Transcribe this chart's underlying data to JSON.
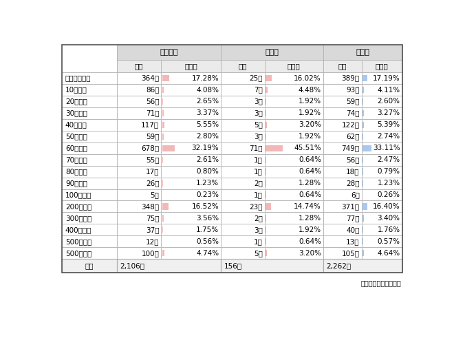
{
  "rows": [
    {
      "label": "許容できない",
      "sme_count": "364社",
      "sme_pct": "17.28%",
      "large_count": "25社",
      "large_pct": "16.02%",
      "all_count": "389社",
      "all_pct": "17.19%",
      "sme_bar": 17.28,
      "large_bar": 16.02,
      "all_bar": 17.19
    },
    {
      "label": "10円未満",
      "sme_count": "86社",
      "sme_pct": "4.08%",
      "large_count": "7社",
      "large_pct": "4.48%",
      "all_count": "93社",
      "all_pct": "4.11%",
      "sme_bar": 4.08,
      "large_bar": 4.48,
      "all_bar": 4.11
    },
    {
      "label": "20円未満",
      "sme_count": "56社",
      "sme_pct": "2.65%",
      "large_count": "3社",
      "large_pct": "1.92%",
      "all_count": "59社",
      "all_pct": "2.60%",
      "sme_bar": 2.65,
      "large_bar": 1.92,
      "all_bar": 2.6
    },
    {
      "label": "30円未満",
      "sme_count": "71社",
      "sme_pct": "3.37%",
      "large_count": "3社",
      "large_pct": "1.92%",
      "all_count": "74社",
      "all_pct": "3.27%",
      "sme_bar": 3.37,
      "large_bar": 1.92,
      "all_bar": 3.27
    },
    {
      "label": "40円未満",
      "sme_count": "117社",
      "sme_pct": "5.55%",
      "large_count": "5社",
      "large_pct": "3.20%",
      "all_count": "122社",
      "all_pct": "5.39%",
      "sme_bar": 5.55,
      "large_bar": 3.2,
      "all_bar": 5.39
    },
    {
      "label": "50円未満",
      "sme_count": "59社",
      "sme_pct": "2.80%",
      "large_count": "3社",
      "large_pct": "1.92%",
      "all_count": "62社",
      "all_pct": "2.74%",
      "sme_bar": 2.8,
      "large_bar": 1.92,
      "all_bar": 2.74
    },
    {
      "label": "60円未満",
      "sme_count": "678社",
      "sme_pct": "32.19%",
      "large_count": "71社",
      "large_pct": "45.51%",
      "all_count": "749社",
      "all_pct": "33.11%",
      "sme_bar": 32.19,
      "large_bar": 45.51,
      "all_bar": 33.11
    },
    {
      "label": "70円未満",
      "sme_count": "55社",
      "sme_pct": "2.61%",
      "large_count": "1社",
      "large_pct": "0.64%",
      "all_count": "56社",
      "all_pct": "2.47%",
      "sme_bar": 2.61,
      "large_bar": 0.64,
      "all_bar": 2.47
    },
    {
      "label": "80円未満",
      "sme_count": "17社",
      "sme_pct": "0.80%",
      "large_count": "1社",
      "large_pct": "0.64%",
      "all_count": "18社",
      "all_pct": "0.79%",
      "sme_bar": 0.8,
      "large_bar": 0.64,
      "all_bar": 0.79
    },
    {
      "label": "90円未満",
      "sme_count": "26社",
      "sme_pct": "1.23%",
      "large_count": "2社",
      "large_pct": "1.28%",
      "all_count": "28社",
      "all_pct": "1.23%",
      "sme_bar": 1.23,
      "large_bar": 1.28,
      "all_bar": 1.23
    },
    {
      "label": "100円未満",
      "sme_count": "5社",
      "sme_pct": "0.23%",
      "large_count": "1社",
      "large_pct": "0.64%",
      "all_count": "6社",
      "all_pct": "0.26%",
      "sme_bar": 0.23,
      "large_bar": 0.64,
      "all_bar": 0.26
    },
    {
      "label": "200円未満",
      "sme_count": "348社",
      "sme_pct": "16.52%",
      "large_count": "23社",
      "large_pct": "14.74%",
      "all_count": "371社",
      "all_pct": "16.40%",
      "sme_bar": 16.52,
      "large_bar": 14.74,
      "all_bar": 16.4
    },
    {
      "label": "300円未満",
      "sme_count": "75社",
      "sme_pct": "3.56%",
      "large_count": "2社",
      "large_pct": "1.28%",
      "all_count": "77社",
      "all_pct": "3.40%",
      "sme_bar": 3.56,
      "large_bar": 1.28,
      "all_bar": 3.4
    },
    {
      "label": "400円未満",
      "sme_count": "37社",
      "sme_pct": "1.75%",
      "large_count": "3社",
      "large_pct": "1.92%",
      "all_count": "40社",
      "all_pct": "1.76%",
      "sme_bar": 1.75,
      "large_bar": 1.92,
      "all_bar": 1.76
    },
    {
      "label": "500円未満",
      "sme_count": "12社",
      "sme_pct": "0.56%",
      "large_count": "1社",
      "large_pct": "0.64%",
      "all_count": "13社",
      "all_pct": "0.57%",
      "sme_bar": 0.56,
      "large_bar": 0.64,
      "all_bar": 0.57
    },
    {
      "label": "500円以上",
      "sme_count": "100社",
      "sme_pct": "4.74%",
      "large_count": "5社",
      "large_pct": "3.20%",
      "all_count": "105社",
      "all_pct": "4.64%",
      "sme_bar": 4.74,
      "large_bar": 3.2,
      "all_bar": 4.64
    }
  ],
  "total_row": {
    "label": "合計",
    "sme_count": "2,106社",
    "large_count": "156社",
    "all_count": "2,262社"
  },
  "header_group": [
    "中小企業",
    "大企業",
    "全企業"
  ],
  "header_sub": [
    "社数",
    "構成比",
    "社数",
    "構成比",
    "社数",
    "構成比"
  ],
  "footer": "東京商工リサーチ調べ",
  "bg_header_group": "#d9d9d9",
  "bg_header_sub": "#ebebeb",
  "bg_total": "#f0f0f0",
  "bg_white": "#ffffff",
  "bar_color_sme": "#f2b8b8",
  "bar_color_large": "#f2b8b8",
  "bar_color_all": "#a8c8f0",
  "edge_color": "#aaaaaa",
  "edge_color_dotted": "#cccccc",
  "text_color": "#000000",
  "font_size": 7.5,
  "bar_max": 50
}
